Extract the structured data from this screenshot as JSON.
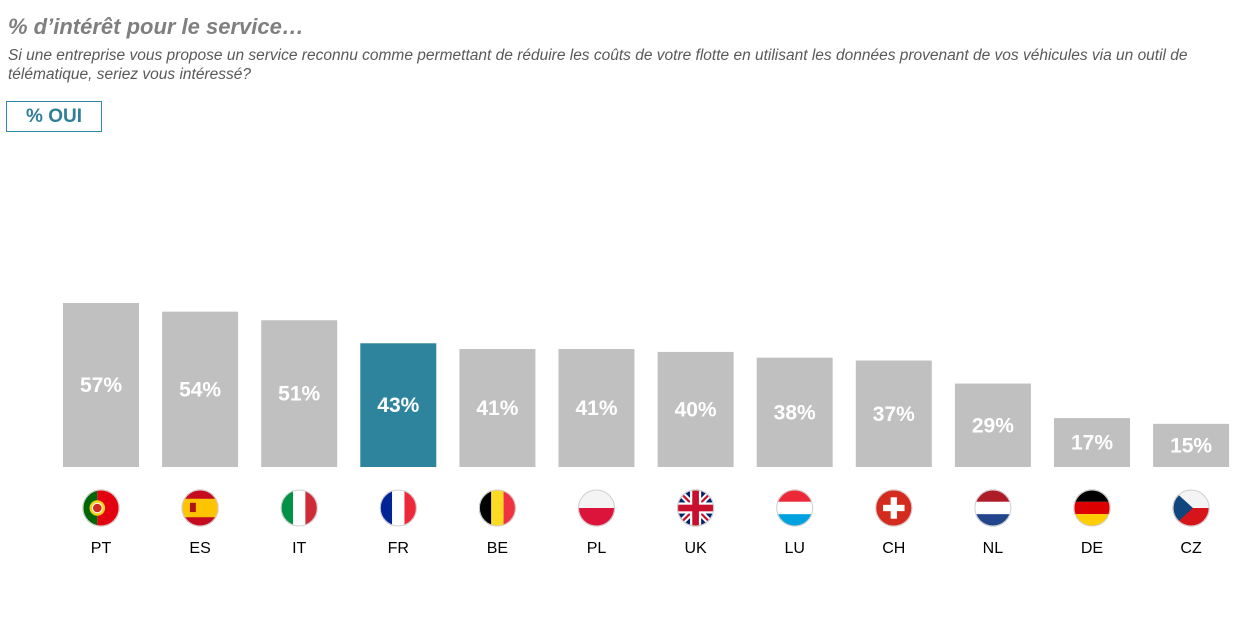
{
  "header": {
    "title": "% d’intérêt pour le service…",
    "subtitle": "Si une entreprise vous propose un service reconnu comme permettant de réduire les coûts de votre flotte en utilisant les données provenant de vos véhicules via un outil de télématique, seriez vous intéressé?",
    "badge": "% OUI"
  },
  "colors": {
    "bar": "#c0c0c0",
    "highlight": "#2e849c",
    "badge_border": "#2e8aa8"
  },
  "chart_data": {
    "type": "bar",
    "categories": [
      "PT",
      "ES",
      "IT",
      "FR",
      "BE",
      "PL",
      "UK",
      "LU",
      "CH",
      "NL",
      "DE",
      "CZ"
    ],
    "values": [
      57,
      54,
      51,
      43,
      41,
      41,
      40,
      38,
      37,
      29,
      17,
      15
    ],
    "value_labels": [
      "57%",
      "54%",
      "51%",
      "43%",
      "41%",
      "41%",
      "40%",
      "38%",
      "37%",
      "29%",
      "17%",
      "15%"
    ],
    "highlight_category": "FR",
    "flag_icons": [
      "portugal-flag-icon",
      "spain-flag-icon",
      "italy-flag-icon",
      "france-flag-icon",
      "belgium-flag-icon",
      "poland-flag-icon",
      "uk-flag-icon",
      "luxembourg-flag-icon",
      "switzerland-flag-icon",
      "netherlands-flag-icon",
      "germany-flag-icon",
      "czech-flag-icon"
    ],
    "title": "% d’intérêt pour le service…",
    "xlabel": "",
    "ylabel": "",
    "grid": false,
    "legend": "none"
  }
}
